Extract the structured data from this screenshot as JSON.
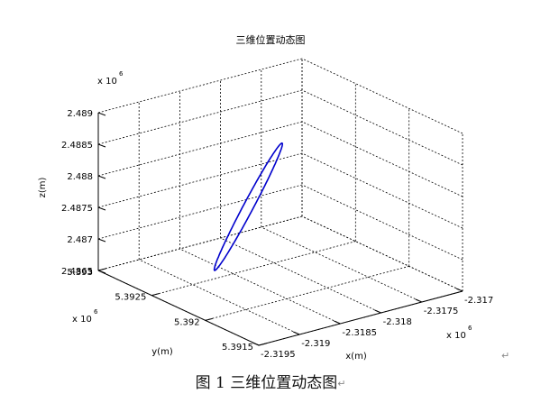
{
  "chart_data": {
    "type": "line3d",
    "title": "三维位置动态图",
    "xlabel": "x(m)",
    "ylabel": "y(m)",
    "zlabel": "z(m)",
    "x_exponent": "x 10",
    "x_exponent_power": "6",
    "y_exponent": "x 10",
    "y_exponent_power": "6",
    "z_exponent": "x 10",
    "z_exponent_power": "6",
    "xlim": [
      -2.3195,
      -2.317
    ],
    "ylim": [
      5.3915,
      5.393
    ],
    "zlim": [
      2.4865,
      2.489
    ],
    "x_ticks": [
      "-2.3195",
      "-2.319",
      "-2.3185",
      "-2.318",
      "-2.3175",
      "-2.317"
    ],
    "x_tick_values": [
      -2.3195,
      -2.319,
      -2.3185,
      -2.318,
      -2.3175,
      -2.317
    ],
    "y_ticks": [
      "5.3915",
      "5.392",
      "5.3925",
      "5.393"
    ],
    "y_tick_values": [
      5.3915,
      5.392,
      5.3925,
      5.393
    ],
    "z_ticks": [
      "2.4865",
      "2.487",
      "2.4875",
      "2.488",
      "2.4885",
      "2.489"
    ],
    "z_tick_values": [
      2.4865,
      2.487,
      2.4875,
      2.488,
      2.4885,
      2.489
    ],
    "grid": true,
    "line_color": "#0000cc",
    "trajectory": {
      "shape": "closed-ellipse",
      "end_a": {
        "x": -2.31915,
        "y": 5.39218,
        "z": 2.48703
      },
      "end_b": {
        "x": -2.31815,
        "y": 5.39231,
        "z": 2.4886
      }
    }
  },
  "figure_caption": {
    "label": "图 1  三维位置动态图",
    "return_mark": "↵"
  }
}
